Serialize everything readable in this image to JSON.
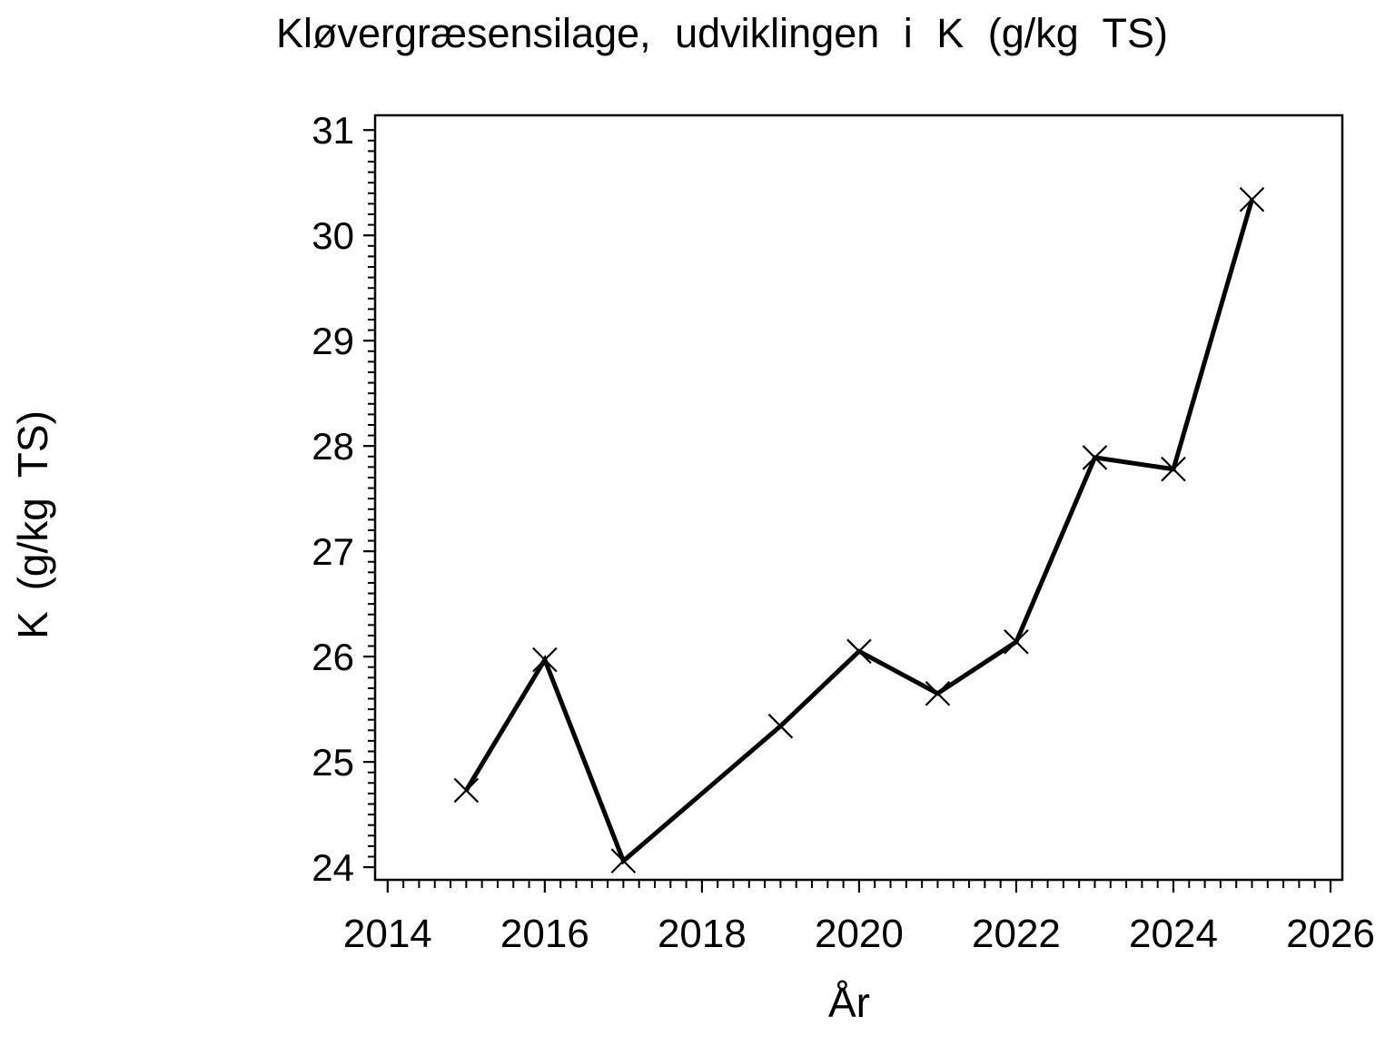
{
  "figure": {
    "background": "#ffffff",
    "foreground": "#000000"
  },
  "chart_data": {
    "type": "line",
    "title": "Kløvergræsensilage, udviklingen i K (g/kg TS)",
    "xlabel": "År",
    "ylabel": "K (g/kg TS)",
    "grid": false,
    "legend": false,
    "series": [
      {
        "x": [
          2015,
          2016,
          2017,
          2019,
          2020,
          2021,
          2022,
          2023,
          2024,
          2025
        ],
        "y": [
          24.73,
          25.97,
          24.06,
          25.34,
          26.05,
          25.65,
          26.14,
          27.89,
          27.78,
          30.34
        ],
        "marker": "x-cross",
        "marker_size": 26,
        "line_width": 5,
        "color": "#000000"
      }
    ],
    "x_axis": {
      "min": 2013.84,
      "max": 2026.15,
      "major_ticks": [
        2014,
        2016,
        2018,
        2020,
        2022,
        2024,
        2026
      ],
      "tick_labels": [
        "2014",
        "2016",
        "2018",
        "2020",
        "2022",
        "2024",
        "2026"
      ],
      "minor_step": 0.2,
      "minor_range": [
        2014,
        2026
      ]
    },
    "y_axis": {
      "min": 23.88,
      "max": 31.14,
      "major_ticks": [
        24,
        25,
        26,
        27,
        28,
        29,
        30,
        31
      ],
      "tick_labels": [
        "24",
        "25",
        "26",
        "27",
        "28",
        "29",
        "30",
        "31"
      ],
      "minor_step": 0.1,
      "minor_range": [
        24,
        31
      ]
    }
  }
}
